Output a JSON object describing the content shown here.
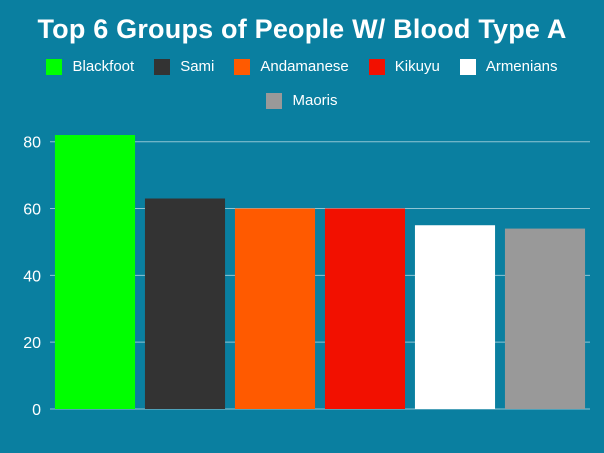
{
  "background": "#0a7fa0",
  "chart_data": {
    "type": "bar",
    "title": "Top 6 Groups of People W/ Blood Type A",
    "xlabel": "",
    "ylabel": "",
    "categories": [
      "Blackfoot",
      "Sami",
      "Andamanese",
      "Kikuyu",
      "Armenians",
      "Maoris"
    ],
    "values": [
      82,
      63,
      60,
      60,
      55,
      54
    ],
    "colors": [
      "#00ff00",
      "#333333",
      "#ff5a00",
      "#f21000",
      "#ffffff",
      "#999999"
    ],
    "ylim": [
      0,
      85
    ],
    "yticks": [
      "0",
      "20",
      "40",
      "60",
      "80"
    ],
    "grid": true,
    "legend_position": "top"
  }
}
